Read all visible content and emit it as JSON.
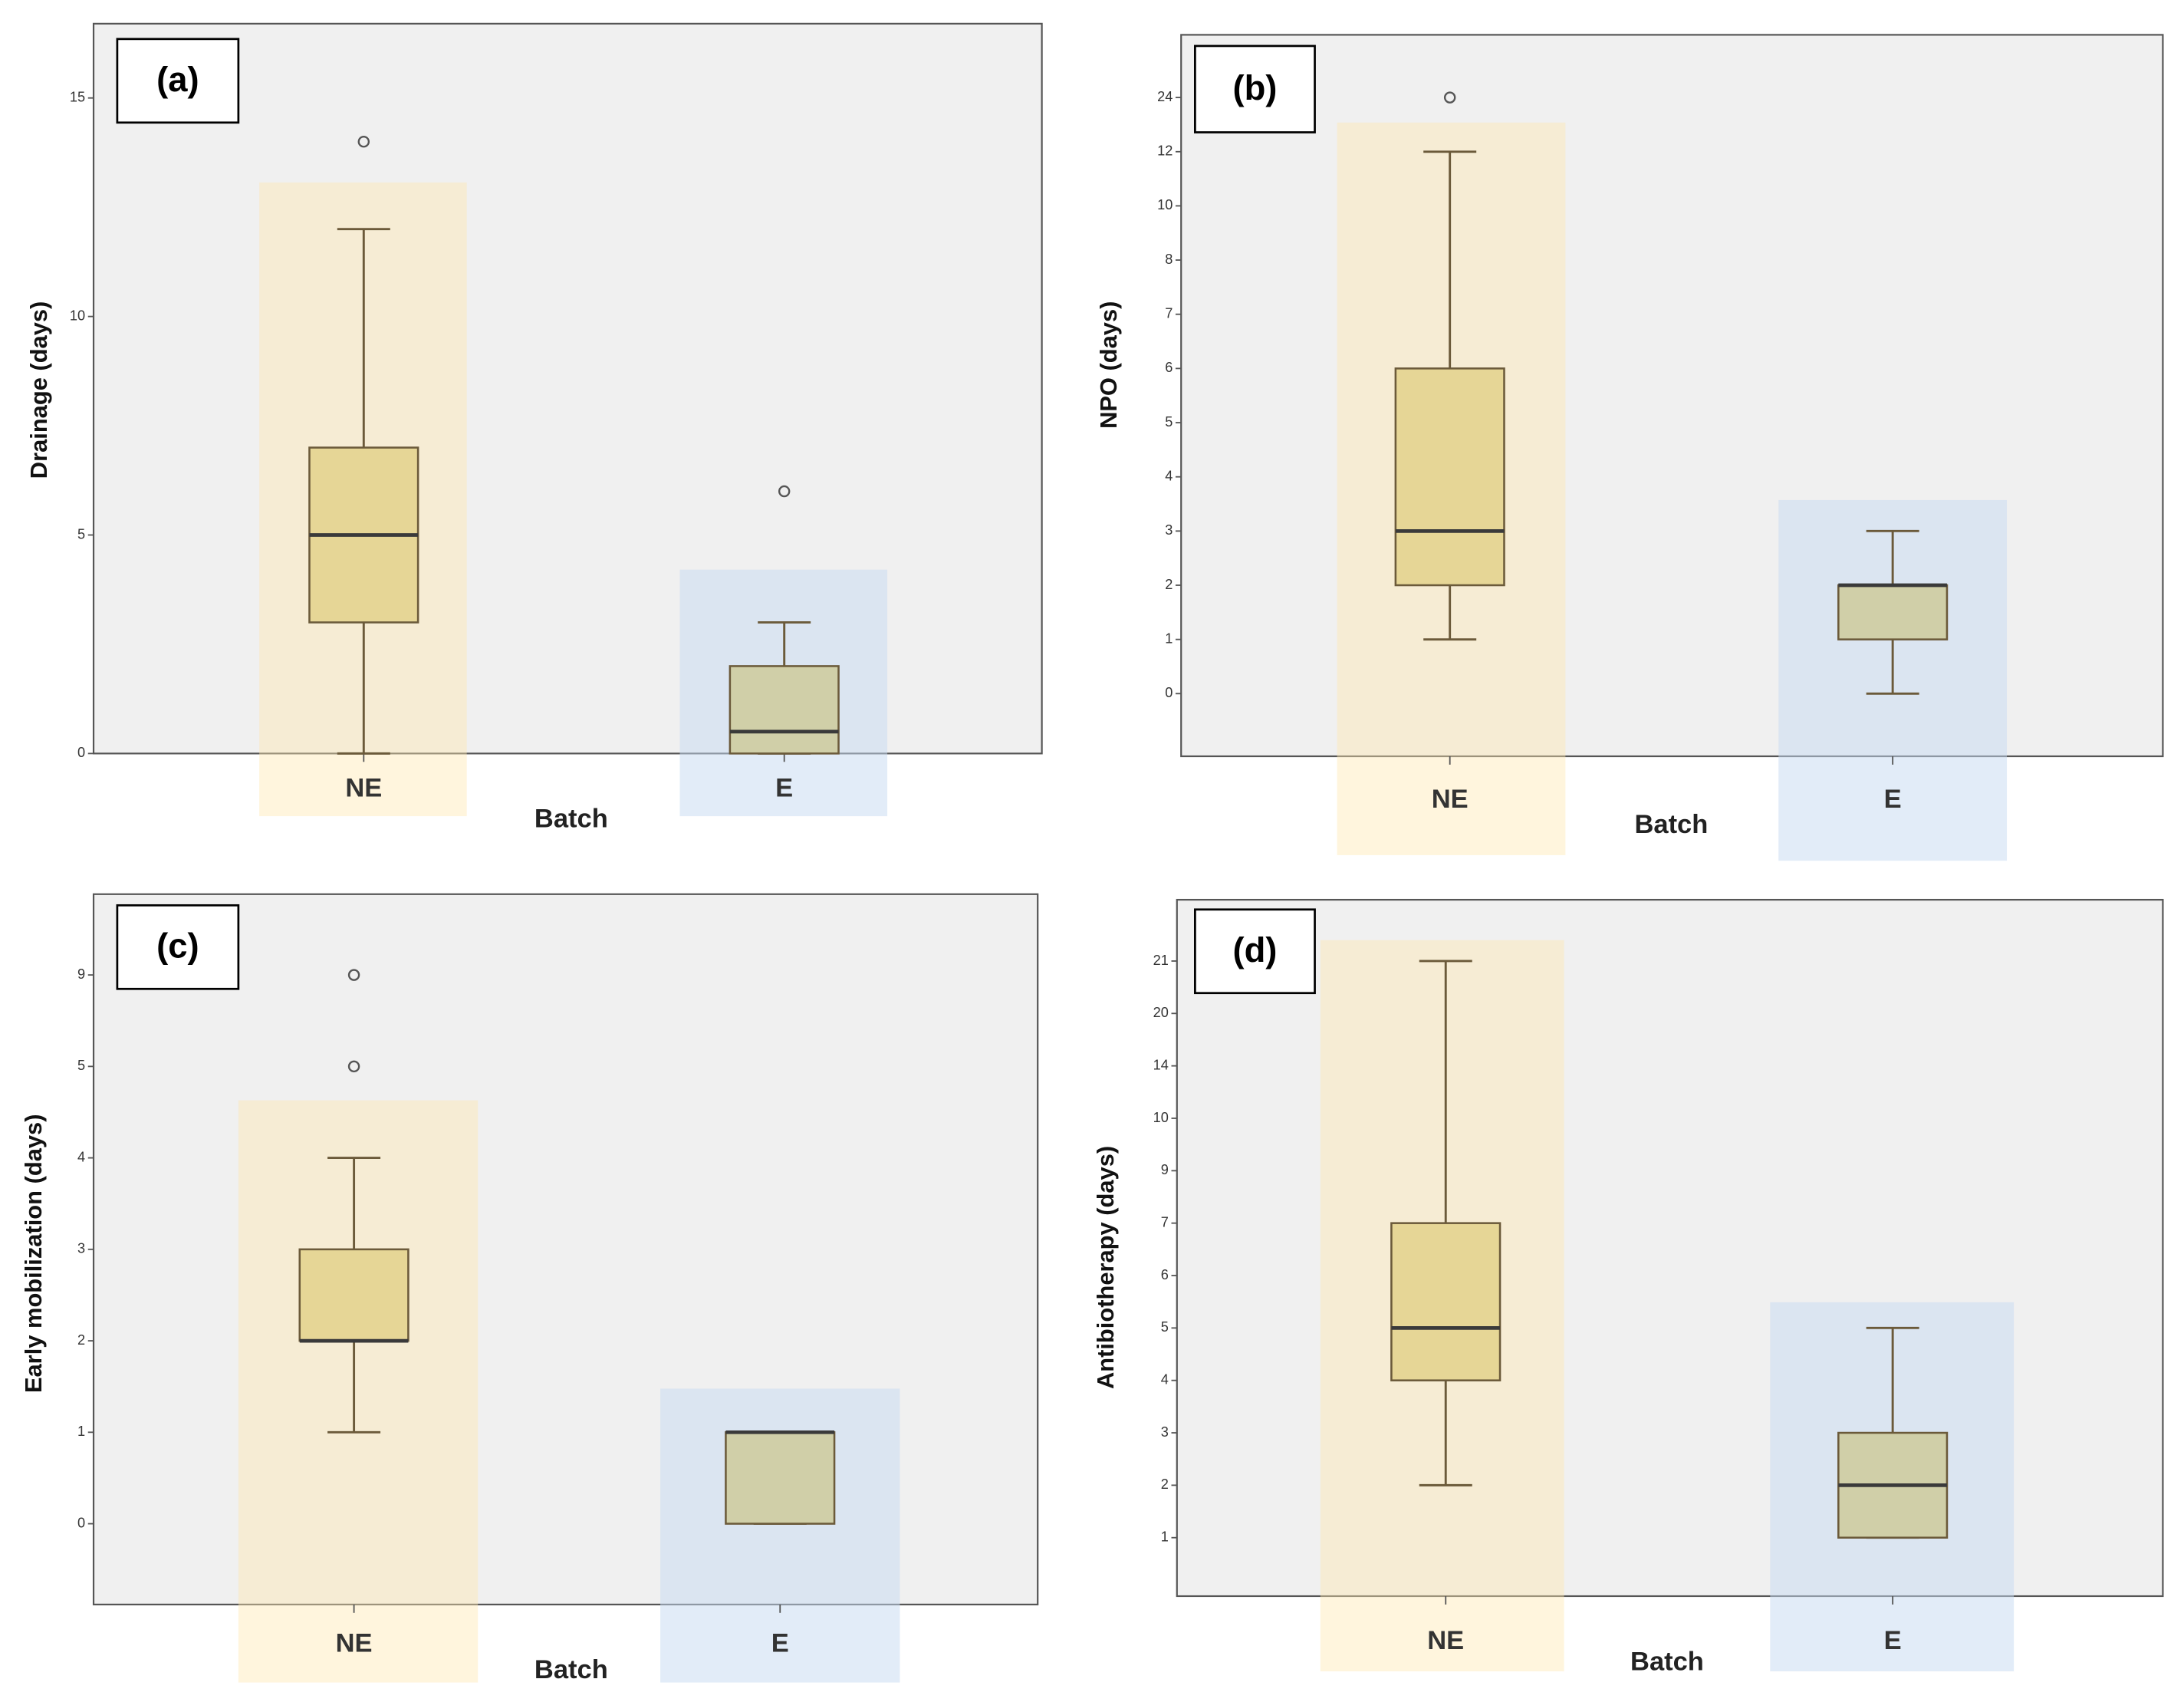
{
  "chart_data": [
    {
      "type": "box",
      "label": "(a)",
      "y_label": "Drainage (days)",
      "x_label": "Batch",
      "categories": [
        "NE",
        "E"
      ],
      "colors": [
        "#e6d696",
        "#d0cfa8"
      ],
      "yscale": "linear",
      "ylim": [
        0,
        16.7
      ],
      "yticks": [
        0,
        5,
        10,
        15
      ],
      "boxes": [
        {
          "min": 0,
          "q1": 3,
          "median": 5,
          "q3": 7,
          "max": 12,
          "outliers": [
            14
          ]
        },
        {
          "min": 0,
          "q1": 0,
          "median": 0.5,
          "q3": 2,
          "max": 3,
          "outliers": [
            6
          ]
        }
      ]
    },
    {
      "type": "box",
      "label": "(b)",
      "y_label": "NPO (days)",
      "x_label": "Batch",
      "categories": [
        "NE",
        "E"
      ],
      "colors": [
        "#e6d696",
        "#d0cfa8"
      ],
      "yscale": "ordinal",
      "yticks": [
        0,
        1,
        2,
        3,
        4,
        5,
        6,
        7,
        8,
        10,
        12,
        24
      ],
      "boxes": [
        {
          "min": 1,
          "q1": 2,
          "median": 3,
          "q3": 6,
          "max": 12,
          "outliers": [
            24
          ]
        },
        {
          "min": 0,
          "q1": 1,
          "median": 2,
          "q3": 2,
          "max": 3,
          "outliers": []
        }
      ]
    },
    {
      "type": "box",
      "label": "(c)",
      "y_label": "Early mobilization (days)",
      "x_label": "Batch",
      "categories": [
        "NE",
        "E"
      ],
      "colors": [
        "#e6d696",
        "#d0cfa8"
      ],
      "yscale": "ordinal",
      "yticks": [
        0,
        1,
        2,
        3,
        4,
        5,
        9
      ],
      "boxes": [
        {
          "min": 1,
          "q1": 2,
          "median": 2,
          "q3": 3,
          "max": 4,
          "outliers": [
            5,
            9
          ]
        },
        {
          "min": 0,
          "q1": 0,
          "median": 1,
          "q3": 1,
          "max": 1,
          "outliers": []
        }
      ]
    },
    {
      "type": "box",
      "label": "(d)",
      "y_label": "Antibiotherapy (days)",
      "x_label": "Batch",
      "categories": [
        "NE",
        "E"
      ],
      "colors": [
        "#e6d696",
        "#d0cfa8"
      ],
      "yscale": "ordinal",
      "yticks": [
        1,
        2,
        3,
        4,
        5,
        6,
        7,
        9,
        10,
        14,
        20,
        21
      ],
      "boxes": [
        {
          "min": 2,
          "q1": 4,
          "median": 5,
          "q3": 7,
          "max": 21,
          "outliers": []
        },
        {
          "min": 1,
          "q1": 1,
          "median": 2,
          "q3": 3,
          "max": 5,
          "outliers": []
        }
      ]
    }
  ]
}
